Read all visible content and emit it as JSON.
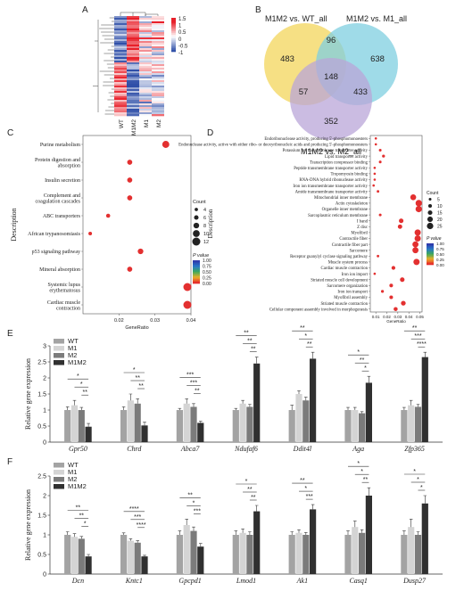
{
  "panels": {
    "A": "A",
    "B": "B",
    "C": "C",
    "D": "D",
    "E": "E",
    "F": "F"
  },
  "heatmap": {
    "columns": [
      "WT",
      "M1M2",
      "M1",
      "M2"
    ],
    "colorbar_ticks": [
      "1.5",
      "1",
      "0.5",
      "0",
      "-0.5",
      "-1"
    ],
    "colors": {
      "high": "#e8202a",
      "mid": "#ffffff",
      "low": "#2f4fa8"
    }
  },
  "venn": {
    "labels": [
      "M1M2 vs. WT_all",
      "M1M2 vs. M1_all",
      "M1M2 vs. M2_all"
    ],
    "counts": {
      "a_only": "483",
      "b_only": "638",
      "c_only": "352",
      "ab": "96",
      "ac": "57",
      "bc": "433",
      "abc": "148"
    },
    "colors": [
      "#f3d55b",
      "#7fcfe0",
      "#b9a6d8"
    ]
  },
  "chart_data": [
    {
      "panel": "C",
      "type": "scatter",
      "xlabel": "GeneRatio",
      "ylabel": "Description",
      "xlim": [
        0.01,
        0.04
      ],
      "xticks": [
        "0.02",
        "0.03",
        "0.04"
      ],
      "legend": {
        "size_title": "Count",
        "sizes": [
          "4",
          "6",
          "8",
          "10",
          "12"
        ],
        "color_title": "P value",
        "color_ticks": [
          "1.00",
          "0.75",
          "0.50",
          "0.25",
          "0.00"
        ]
      },
      "points": [
        {
          "label": "Purine metabolism",
          "x": 0.033,
          "count": 10,
          "p": 0.01
        },
        {
          "label": "Protein digestion and absorption",
          "x": 0.023,
          "count": 6,
          "p": 0.02
        },
        {
          "label": "Insulin secretion",
          "x": 0.023,
          "count": 6,
          "p": 0.02
        },
        {
          "label": "Complement and coagulation cascades",
          "x": 0.023,
          "count": 6,
          "p": 0.02
        },
        {
          "label": "ABC transporters",
          "x": 0.017,
          "count": 4,
          "p": 0.03
        },
        {
          "label": "African trypanosomiasis",
          "x": 0.012,
          "count": 3,
          "p": 0.04
        },
        {
          "label": "p53 signaling pathway",
          "x": 0.026,
          "count": 7,
          "p": 0.02
        },
        {
          "label": "Mineral absorption",
          "x": 0.023,
          "count": 6,
          "p": 0.02
        },
        {
          "label": "Systemic lupus erythematosus",
          "x": 0.039,
          "count": 12,
          "p": 0.01
        },
        {
          "label": "Cardiac muscle contraction",
          "x": 0.039,
          "count": 12,
          "p": 0.01
        }
      ]
    },
    {
      "panel": "D",
      "type": "scatter",
      "xlabel": "GeneRatio",
      "ylabel": "Description",
      "xlim": [
        0.005,
        0.052
      ],
      "xticks": [
        "0.01",
        "0.02",
        "0.03",
        "0.04",
        "0.05"
      ],
      "legend": {
        "size_title": "Count",
        "sizes": [
          "5",
          "10",
          "15",
          "20",
          "25"
        ],
        "color_title": "P value",
        "color_ticks": [
          "1.00",
          "0.75",
          "0.50",
          "0.25",
          "0.00"
        ]
      },
      "points": [
        {
          "label": "Endoribonuclease activity, producing 5'-phosphomonoesters",
          "x": 0.01,
          "count": 3
        },
        {
          "label": "Endonuclease activity, active with either ribo- or deoxyribonucleic acids and producing 5'-phosphomonoesters",
          "x": 0.01,
          "count": 3
        },
        {
          "label": "Potassium ion transmembrane transporter activity",
          "x": 0.014,
          "count": 5
        },
        {
          "label": "Lipid transporter activity",
          "x": 0.017,
          "count": 6
        },
        {
          "label": "Transcription corepressor binding",
          "x": 0.014,
          "count": 5
        },
        {
          "label": "Peptide transmembrane transporter activity",
          "x": 0.009,
          "count": 3
        },
        {
          "label": "Tropomyosin binding",
          "x": 0.009,
          "count": 3
        },
        {
          "label": "RNA-DNA hybrid ribonuclease activity",
          "x": 0.009,
          "count": 3
        },
        {
          "label": "Iron ion transmembrane transporter activity",
          "x": 0.008,
          "count": 3
        },
        {
          "label": "Amide transmembrane transporter activity",
          "x": 0.012,
          "count": 4
        },
        {
          "label": "Mitochondrial inner membrane",
          "x": 0.044,
          "count": 22
        },
        {
          "label": "Actin cytoskeleton",
          "x": 0.049,
          "count": 25
        },
        {
          "label": "Organelle inner membrane",
          "x": 0.049,
          "count": 25
        },
        {
          "label": "Sarcoplasmic reticulum membrane",
          "x": 0.014,
          "count": 5
        },
        {
          "label": "I band",
          "x": 0.033,
          "count": 15
        },
        {
          "label": "Z disc",
          "x": 0.032,
          "count": 14
        },
        {
          "label": "Myofibril",
          "x": 0.048,
          "count": 24
        },
        {
          "label": "Contractile fiber",
          "x": 0.048,
          "count": 24
        },
        {
          "label": "Contractile fiber part",
          "x": 0.046,
          "count": 23
        },
        {
          "label": "Sarcomere",
          "x": 0.046,
          "count": 23
        },
        {
          "label": "Receptor guanylyl cyclase signaling pathway",
          "x": 0.012,
          "count": 4
        },
        {
          "label": "Muscle system process",
          "x": 0.047,
          "count": 24
        },
        {
          "label": "Cardiac muscle contraction",
          "x": 0.026,
          "count": 11
        },
        {
          "label": "Iron ion import",
          "x": 0.009,
          "count": 3
        },
        {
          "label": "Striated muscle cell development",
          "x": 0.034,
          "count": 15
        },
        {
          "label": "Sarcomere organization",
          "x": 0.024,
          "count": 10
        },
        {
          "label": "Iron ion transport",
          "x": 0.016,
          "count": 6
        },
        {
          "label": "Myofibril assembly",
          "x": 0.024,
          "count": 10
        },
        {
          "label": "Striated muscle contraction",
          "x": 0.035,
          "count": 16
        },
        {
          "label": "Cellular component assembly involved in morphogenesis",
          "x": 0.028,
          "count": 12
        }
      ]
    },
    {
      "panel": "E",
      "type": "bar",
      "ylabel": "Relative gene expression",
      "ylim": [
        0,
        3
      ],
      "yticks": [
        "0",
        "0.5",
        "1",
        "1.5",
        "2",
        "2.5",
        "3"
      ],
      "series_names": [
        "WT",
        "M1",
        "M2",
        "M1M2"
      ],
      "colors": [
        "#a3a3a3",
        "#d4d4d4",
        "#7b7b7b",
        "#303030"
      ],
      "genes": [
        {
          "name": "Gpr50",
          "values": [
            1.0,
            1.15,
            1.0,
            0.48
          ],
          "err": [
            0.1,
            0.15,
            0.08,
            0.1
          ],
          "sig": [
            "*",
            "*",
            "**"
          ]
        },
        {
          "name": "Chrd",
          "values": [
            1.0,
            1.3,
            1.2,
            0.52
          ],
          "err": [
            0.1,
            0.2,
            0.15,
            0.1
          ],
          "sig": [
            "*",
            "**",
            "**"
          ]
        },
        {
          "name": "Abca7",
          "values": [
            1.0,
            1.2,
            1.1,
            0.6
          ],
          "err": [
            0.05,
            0.15,
            0.1,
            0.05
          ],
          "sig": [
            "***",
            "***",
            "**"
          ]
        },
        {
          "name": "Ndufaf6",
          "values": [
            1.0,
            1.2,
            1.1,
            2.45
          ],
          "err": [
            0.05,
            0.1,
            0.08,
            0.2
          ],
          "sig": [
            "**",
            "**",
            "**"
          ]
        },
        {
          "name": "Ddit4l",
          "values": [
            1.0,
            1.5,
            1.3,
            2.6
          ],
          "err": [
            0.15,
            0.1,
            0.1,
            0.2
          ],
          "sig": [
            "**",
            "*",
            "**"
          ]
        },
        {
          "name": "Aga",
          "values": [
            1.0,
            1.0,
            0.9,
            1.85
          ],
          "err": [
            0.08,
            0.08,
            0.05,
            0.2
          ],
          "sig": [
            "*",
            "**",
            "*"
          ]
        },
        {
          "name": "Zfp365",
          "values": [
            1.0,
            1.15,
            1.1,
            2.65
          ],
          "err": [
            0.08,
            0.15,
            0.08,
            0.15
          ],
          "sig": [
            "**",
            "***",
            "****"
          ]
        }
      ]
    },
    {
      "panel": "F",
      "type": "bar",
      "ylabel": "Relative gene expression",
      "ylim": [
        0,
        2.5
      ],
      "yticks": [
        "0",
        "0.5",
        "1",
        "1.5",
        "2",
        "2.5"
      ],
      "series_names": [
        "WT",
        "M1",
        "M2",
        "M1M2"
      ],
      "colors": [
        "#a3a3a3",
        "#d4d4d4",
        "#7b7b7b",
        "#303030"
      ],
      "genes": [
        {
          "name": "Dcn",
          "values": [
            1.0,
            0.95,
            0.9,
            0.45
          ],
          "err": [
            0.08,
            0.08,
            0.06,
            0.05
          ],
          "sig": [
            "**",
            "**",
            "*"
          ]
        },
        {
          "name": "Kntc1",
          "values": [
            1.0,
            0.85,
            0.8,
            0.45
          ],
          "err": [
            0.05,
            0.05,
            0.05,
            0.03
          ],
          "sig": [
            "****",
            "***",
            "****"
          ]
        },
        {
          "name": "Gpcpd1",
          "values": [
            1.0,
            1.25,
            1.1,
            0.7
          ],
          "err": [
            0.1,
            0.15,
            0.1,
            0.08
          ],
          "sig": [
            "**",
            "*",
            "***"
          ]
        },
        {
          "name": "Lmod1",
          "values": [
            1.0,
            1.05,
            1.0,
            1.6
          ],
          "err": [
            0.1,
            0.1,
            0.08,
            0.15
          ],
          "sig": [
            "*",
            "**",
            "**"
          ]
        },
        {
          "name": "Ak1",
          "values": [
            1.0,
            1.05,
            1.0,
            1.65
          ],
          "err": [
            0.08,
            0.08,
            0.06,
            0.12
          ],
          "sig": [
            "**",
            "*",
            "***"
          ]
        },
        {
          "name": "Casq1",
          "values": [
            1.0,
            1.2,
            1.05,
            2.0
          ],
          "err": [
            0.1,
            0.15,
            0.08,
            0.2
          ],
          "sig": [
            "*",
            "*",
            "**"
          ]
        },
        {
          "name": "Dusp27",
          "values": [
            1.0,
            1.2,
            1.0,
            1.8
          ],
          "err": [
            0.1,
            0.2,
            0.08,
            0.2
          ],
          "sig": [
            "*",
            "*",
            "*"
          ]
        }
      ]
    }
  ]
}
